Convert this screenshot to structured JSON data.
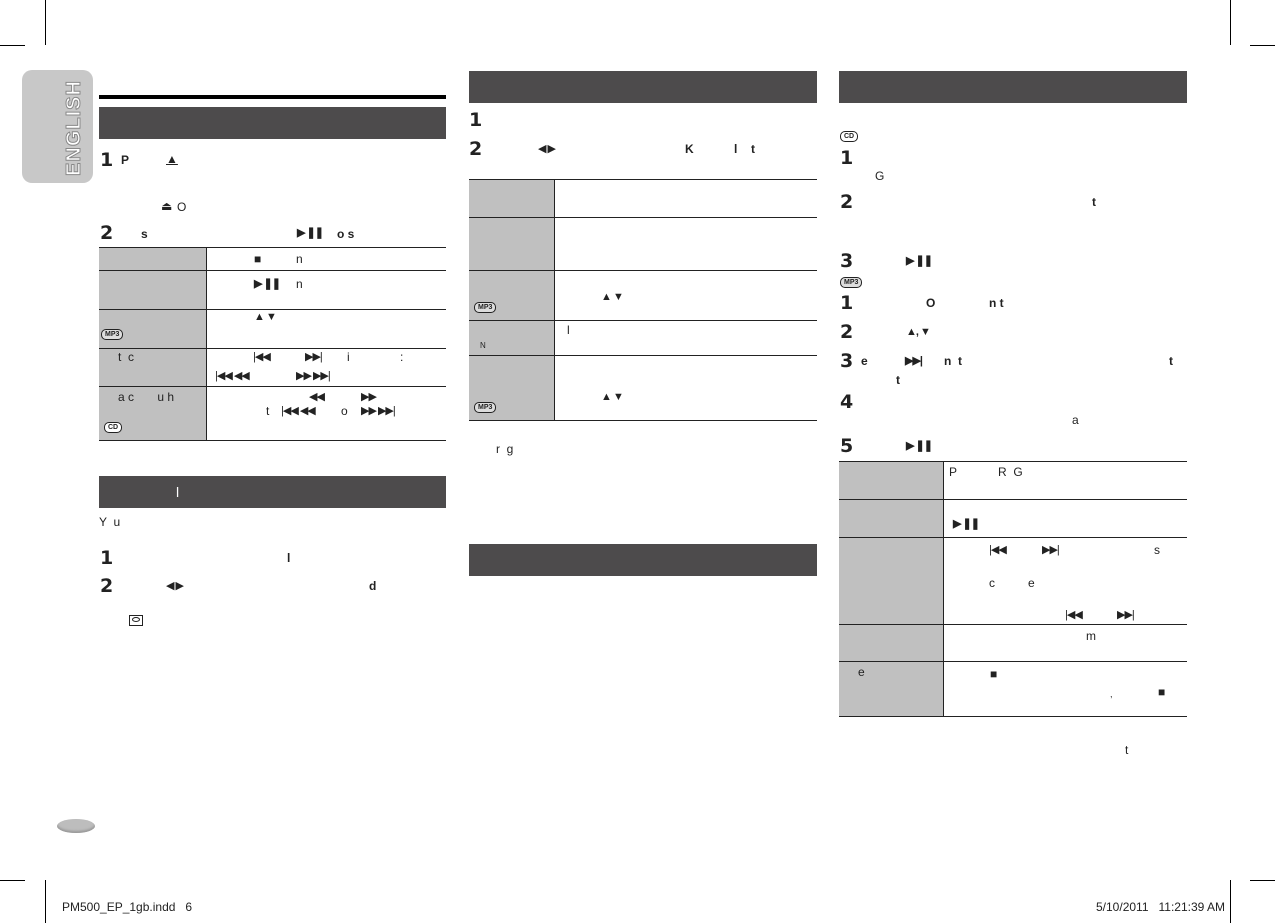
{
  "side_tab": {
    "label": "ENGLISH",
    "color": "#c8c8c8"
  },
  "colors": {
    "header": "#4d4b4c",
    "table_label": "#c0c0c0"
  },
  "col1": {
    "step1": {
      "num": "1",
      "t1": "P",
      "icon": "▲",
      "t2": "⏏",
      "t3": "O"
    },
    "step2": {
      "num": "2",
      "t1": "s",
      "icon": "▶ ❚❚",
      "t2": "o s"
    },
    "table": [
      {
        "cells": [
          "■",
          "n"
        ]
      },
      {
        "cells": [
          "▶ ❚❚",
          "n"
        ]
      },
      {
        "badge": "MP3",
        "cells": [
          "▲ ▼"
        ]
      },
      {
        "label": "t  c",
        "cells": [
          "|◀◀",
          "▶▶|",
          "i",
          ":",
          "|◀◀ ◀◀",
          "▶▶ ▶▶|"
        ]
      },
      {
        "label": "a c       u h",
        "badge": "CD",
        "cells": [
          "◀◀",
          "▶▶",
          "t",
          "|◀◀ ◀◀",
          "o",
          "▶▶ ▶▶|"
        ]
      }
    ],
    "header2": "l",
    "intro": "Y  u",
    "s1": {
      "num": "1",
      "t": "l"
    },
    "s2": {
      "num": "2",
      "icon": "◀ ▶",
      "t": "d"
    }
  },
  "col2": {
    "s1": {
      "num": "1"
    },
    "s2": {
      "num": "2",
      "icon": "◀ ▶",
      "k": "K",
      "l": "l",
      "t": "t"
    },
    "table": [
      {},
      {},
      {
        "badge": "MP3",
        "cells": [
          "▲ ▼"
        ]
      },
      {
        "label": "N",
        "cells": [
          "l"
        ]
      },
      {
        "badge": "MP3",
        "cells": [
          "▲ ▼"
        ]
      }
    ],
    "note": "r  g"
  },
  "col3": {
    "cd_badge": "CD",
    "cd_steps": [
      {
        "num": "1",
        "t": "G"
      },
      {
        "num": "2",
        "t": "t"
      },
      {
        "num": "3",
        "icon": "▶ ❚❚"
      }
    ],
    "mp3_badge": "MP3",
    "mp3_steps": [
      {
        "num": "1",
        "t1": "O",
        "t2": "n t"
      },
      {
        "num": "2",
        "icon": "▲, ▼"
      },
      {
        "num": "3",
        "t1": "e",
        "icon": "▶▶|",
        "t2": "n  t",
        "t3": "t",
        "t4": "t"
      },
      {
        "num": "4",
        "t": "a"
      },
      {
        "num": "5",
        "icon": "▶ ❚❚"
      }
    ],
    "table": [
      {
        "cells": [
          "P",
          "R  G"
        ]
      },
      {
        "cells": [
          "▶ ❚❚"
        ]
      },
      {
        "cells": [
          "|◀◀",
          "▶▶|",
          "s",
          "c",
          "e",
          "|◀◀",
          "▶▶|"
        ]
      },
      {
        "cells": [
          "m"
        ]
      },
      {
        "label": "e",
        "cells": [
          "■",
          ",",
          "■"
        ]
      }
    ],
    "footnote": "t"
  },
  "footer": {
    "file": "PM500_EP_1gb.indd   6",
    "date": "5/10/2011   11:21:39 AM"
  }
}
